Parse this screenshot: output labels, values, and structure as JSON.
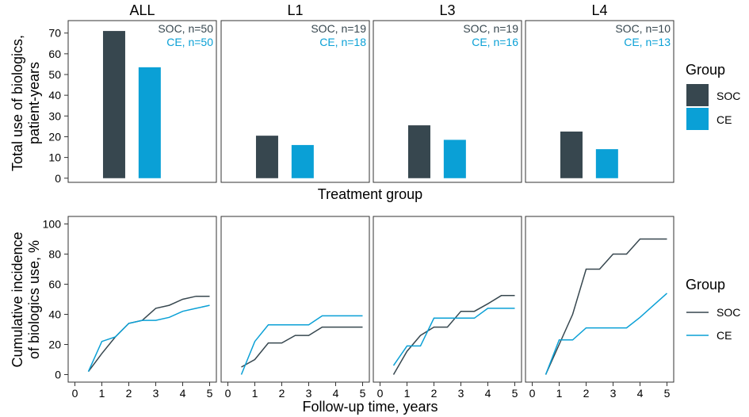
{
  "colors": {
    "SOC": "#37474f",
    "CE": "#0aa0d6",
    "axis": "#333333",
    "text": "#000000"
  },
  "panels": [
    "ALL",
    "L1",
    "L3",
    "L4"
  ],
  "legend": {
    "top": {
      "title": "Group",
      "items": [
        "SOC",
        "CE"
      ]
    },
    "bottom": {
      "title": "Group",
      "items": [
        "SOC",
        "CE"
      ]
    }
  },
  "chart_data": [
    {
      "type": "bar",
      "facet_by": "panel",
      "categories": [
        "SOC",
        "CE"
      ],
      "xlabel": "Treatment group",
      "ylabel": [
        "Total use of biologics,",
        "patient-years"
      ],
      "ylim": [
        -2,
        76
      ],
      "yticks": [
        0,
        10,
        20,
        30,
        40,
        50,
        60,
        70
      ],
      "facets": [
        {
          "panel": "ALL",
          "values": [
            71,
            53.5
          ],
          "annotations": [
            "SOC, n=50",
            "CE, n=50"
          ]
        },
        {
          "panel": "L1",
          "values": [
            20.5,
            16
          ],
          "annotations": [
            "SOC, n=19",
            "CE, n=18"
          ]
        },
        {
          "panel": "L3",
          "values": [
            25.5,
            18.5
          ],
          "annotations": [
            "SOC, n=19",
            "CE, n=16"
          ]
        },
        {
          "panel": "L4",
          "values": [
            22.5,
            14
          ],
          "annotations": [
            "SOC, n=10",
            "CE, n=13"
          ]
        }
      ]
    },
    {
      "type": "line",
      "step": true,
      "facet_by": "panel",
      "xlabel": "Follow-up time, years",
      "ylabel": [
        "Cumulative incidence",
        "of biologics use, %"
      ],
      "xlim": [
        -0.25,
        5.25
      ],
      "ylim": [
        -5,
        105
      ],
      "xticks": [
        0,
        1,
        2,
        3,
        4,
        5
      ],
      "yticks": [
        0,
        20,
        40,
        60,
        80,
        100
      ],
      "facets": [
        {
          "panel": "ALL",
          "series": [
            {
              "name": "SOC",
              "x": [
                0.5,
                1,
                1.5,
                2,
                2.5,
                3,
                3.5,
                4,
                4.5,
                5
              ],
              "y": [
                2,
                14,
                25,
                34,
                36,
                44,
                46,
                50,
                52,
                52
              ]
            },
            {
              "name": "CE",
              "x": [
                0.5,
                1,
                1.5,
                2,
                2.5,
                3,
                3.5,
                4,
                4.5,
                5
              ],
              "y": [
                2,
                22,
                25,
                34,
                36,
                36,
                38,
                42,
                44,
                46
              ]
            }
          ]
        },
        {
          "panel": "L1",
          "series": [
            {
              "name": "SOC",
              "x": [
                0.5,
                1,
                1.5,
                2,
                2.5,
                3,
                3.5,
                4,
                4.5,
                5
              ],
              "y": [
                5,
                10,
                21,
                21,
                26,
                26,
                31.5,
                31.5,
                31.5,
                31.5
              ]
            },
            {
              "name": "CE",
              "x": [
                0.5,
                1,
                1.5,
                2,
                2.5,
                3,
                3.5,
                4,
                4.5,
                5
              ],
              "y": [
                0,
                22,
                33,
                33,
                33,
                33,
                39,
                39,
                39,
                39
              ]
            }
          ]
        },
        {
          "panel": "L3",
          "series": [
            {
              "name": "SOC",
              "x": [
                0.5,
                1,
                1.5,
                2,
                2.5,
                3,
                3.5,
                4,
                4.5,
                5
              ],
              "y": [
                0,
                15.5,
                26,
                31.5,
                31.5,
                42,
                42,
                47,
                52.5,
                52.5
              ]
            },
            {
              "name": "CE",
              "x": [
                0.5,
                1,
                1.5,
                2,
                2.5,
                3,
                3.5,
                4,
                4.5,
                5
              ],
              "y": [
                6,
                19,
                19,
                37.5,
                37.5,
                37.5,
                37.5,
                44,
                44,
                44
              ]
            }
          ]
        },
        {
          "panel": "L4",
          "series": [
            {
              "name": "SOC",
              "x": [
                0.5,
                1,
                1.5,
                2,
                2.5,
                3,
                3.5,
                4,
                4.5,
                5
              ],
              "y": [
                0,
                20,
                40,
                70,
                70,
                80,
                80,
                90,
                90,
                90
              ]
            },
            {
              "name": "CE",
              "x": [
                0.5,
                1,
                1.5,
                2,
                2.5,
                3,
                3.5,
                4,
                4.5,
                5
              ],
              "y": [
                0,
                23,
                23,
                31,
                31,
                31,
                31,
                38,
                46,
                54
              ]
            }
          ]
        }
      ]
    }
  ]
}
